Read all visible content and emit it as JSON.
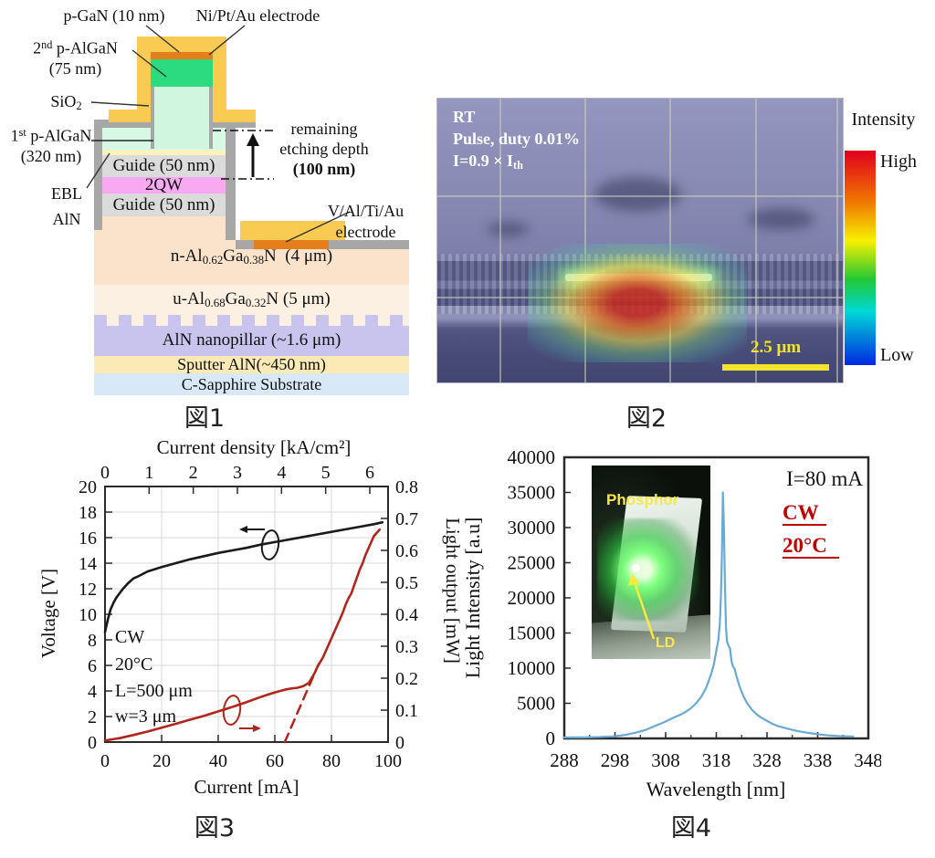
{
  "captions": {
    "fig1": "図1",
    "fig2": "図2",
    "fig3": "図3",
    "fig4": "図4"
  },
  "fig1": {
    "labels": {
      "p_gan": "p-GaN (10 nm)",
      "ni_pt_au": "Ni/Pt/Au electrode",
      "p_algan2_line1": "2<sup>nd</sup> p-AlGaN",
      "p_algan2_line2": "(75 nm)",
      "sio2": "SiO<sub>2</sub>",
      "p_algan1_line1": "1<sup>st</sup> p-AlGaN",
      "p_algan1_line2": "(320 nm)",
      "ebl_line1": "EBL",
      "ebl_line2": "AlN",
      "etch_line1": "remaining",
      "etch_line2": "etching depth",
      "etch_line3": "(100 nm)",
      "v_electrode_line1": "V/Al/Ti/Au",
      "v_electrode_line2": "electrode"
    },
    "layers": {
      "guide_top": "Guide (50 nm)",
      "qw": "2QW",
      "guide_bottom": "Guide (50 nm)",
      "n_algan": "n-Al<sub>0.62</sub>Ga<sub>0.38</sub>N&nbsp; (4 μm)",
      "u_algan": "u-Al<sub>0.68</sub>Ga<sub>0.32</sub>N (5 μm)",
      "nanopillar": "AlN nanopillar (~1.6 μm)",
      "sputter": "Sputter AlN(~450 nm)",
      "substrate": "C-Sapphire Substrate"
    },
    "colors": {
      "electrode_gold": "#FACB52",
      "contact_orange": "#E57F1B",
      "p_algan2_green": "#2CDB80",
      "ridge_green": "#D0F6DF",
      "p_algan1_green": "#D6F8E4",
      "ebl_yellow": "#FAF3C0",
      "guide_gray": "#DBDBDB",
      "qw_pink": "#F8A9F2",
      "frame_gray": "#A7A7A7",
      "n_algan_peach": "#FAE2CB",
      "u_algan_peach": "#FCF0E2",
      "nanopillar_lavender": "#C8C4EE",
      "sputter_yellow": "#FBE9B6",
      "sapphire_blue": "#D8E8F6"
    }
  },
  "fig2": {
    "annotation_line1": "RT",
    "annotation_line2": "Pulse, duty 0.01%",
    "annotation_line3": "I=0.9 × I<sub>th</sub>",
    "scale_bar": "2.5 μm",
    "colorbar": {
      "title": "Intensity",
      "high": "High",
      "low": "Low"
    },
    "colors": {
      "colorbar_stops": [
        "#e0001c",
        "#f07800",
        "#f8f000",
        "#22c832",
        "#00d8d8",
        "#0028e0"
      ],
      "scale_bar_yellow": "#f2e32b",
      "bg_top": "#9496bf",
      "bg_bottom": "#42466f"
    }
  },
  "fig4_inset": {
    "phosphor_label": "Phosphor",
    "ld_label": "LD"
  },
  "chart_data": [
    {
      "id": "fig3-liv",
      "type": "line",
      "xlabel": "Current [mA]",
      "xlabel_top": "Current density [kA/cm²]",
      "ylabel_left": "Voltage [V]",
      "ylabel_right": "Light output [mW]",
      "xlim": [
        0,
        100
      ],
      "xlim_top": [
        0,
        6.42
      ],
      "ylim_left": [
        0,
        20
      ],
      "ylim_right": [
        0,
        0.8
      ],
      "x_ticks": [
        0,
        20,
        40,
        60,
        80,
        100
      ],
      "x_ticks_top": [
        0,
        1,
        2,
        3,
        4,
        5,
        6
      ],
      "y_ticks_left": [
        0,
        2,
        4,
        6,
        8,
        10,
        12,
        14,
        16,
        18,
        20
      ],
      "y_ticks_right": [
        0,
        0.1,
        0.2,
        0.3,
        0.4,
        0.5,
        0.6,
        0.7,
        0.8
      ],
      "grid": true,
      "annotations": [
        "CW",
        "20°C",
        "L=500 μm",
        "w=3 μm"
      ],
      "threshold_mA": 64,
      "series": [
        {
          "name": "Voltage",
          "axis": "left",
          "color": "#1a1a1a",
          "x": [
            0,
            0.5,
            1,
            2,
            3,
            4,
            5,
            6,
            8,
            10,
            12,
            15,
            20,
            25,
            30,
            35,
            40,
            45,
            50,
            55,
            60,
            65,
            70,
            75,
            80,
            85,
            90,
            95,
            98
          ],
          "y": [
            8.6,
            9.1,
            9.6,
            10.4,
            10.9,
            11.3,
            11.6,
            11.9,
            12.4,
            12.8,
            13.0,
            13.35,
            13.7,
            14.0,
            14.3,
            14.55,
            14.8,
            15.0,
            15.2,
            15.45,
            15.65,
            15.85,
            16.05,
            16.25,
            16.45,
            16.65,
            16.85,
            17.05,
            17.2
          ]
        },
        {
          "name": "Light output",
          "axis": "right",
          "color": "#b1251a",
          "x": [
            0,
            5,
            10,
            15,
            20,
            25,
            30,
            35,
            40,
            45,
            50,
            54,
            58,
            61,
            64,
            66,
            68,
            70,
            72,
            73,
            74,
            75,
            76,
            77,
            78,
            80,
            82,
            84,
            85,
            86,
            87,
            88,
            89,
            90,
            91,
            92,
            93,
            94,
            95,
            96,
            97
          ],
          "y": [
            0.005,
            0.012,
            0.022,
            0.033,
            0.045,
            0.057,
            0.07,
            0.082,
            0.096,
            0.11,
            0.125,
            0.138,
            0.15,
            0.158,
            0.165,
            0.168,
            0.17,
            0.175,
            0.185,
            0.2,
            0.215,
            0.235,
            0.25,
            0.265,
            0.285,
            0.325,
            0.365,
            0.405,
            0.43,
            0.45,
            0.465,
            0.49,
            0.515,
            0.54,
            0.56,
            0.585,
            0.605,
            0.625,
            0.645,
            0.655,
            0.665
          ]
        },
        {
          "name": "Threshold extrapolation",
          "axis": "right",
          "style": "dashed",
          "color": "#b1251a",
          "x": [
            63.5,
            75.5
          ],
          "y": [
            0,
            0.245
          ]
        }
      ]
    },
    {
      "id": "fig4-spectrum",
      "type": "line",
      "xlabel": "Wavelength [nm]",
      "ylabel": "Light Intensity [a.u]",
      "xlim": [
        288,
        348
      ],
      "ylim": [
        0,
        40000
      ],
      "x_ticks": [
        288,
        298,
        308,
        318,
        328,
        338,
        348
      ],
      "y_ticks": [
        0,
        5000,
        10000,
        15000,
        20000,
        25000,
        30000,
        35000,
        40000
      ],
      "grid": false,
      "annotations": [
        "I=80 mA",
        "CW",
        "20°C"
      ],
      "peak": {
        "wavelength": 319.3,
        "intensity": 35000
      },
      "series": [
        {
          "name": "EL spectrum",
          "color": "#69aad5",
          "x": [
            288,
            292,
            295,
            298,
            300,
            302,
            304,
            306,
            308,
            310,
            311,
            312,
            313,
            314,
            315,
            316,
            317,
            317.5,
            318,
            318.4,
            318.7,
            318.9,
            319.1,
            319.3,
            319.5,
            319.7,
            319.9,
            320.1,
            320.4,
            320.7,
            321,
            321.3,
            321.6,
            322,
            322.5,
            323,
            323.5,
            324,
            325,
            326,
            327,
            328,
            329,
            330,
            332,
            334,
            336,
            338,
            340,
            342,
            344,
            345
          ],
          "y": [
            150,
            150,
            200,
            300,
            500,
            800,
            1200,
            1800,
            2400,
            3100,
            3400,
            3800,
            4300,
            5000,
            5900,
            7200,
            9200,
            10500,
            12500,
            14000,
            16500,
            20000,
            26000,
            35000,
            30000,
            22000,
            16000,
            13800,
            13200,
            12800,
            11000,
            10200,
            9900,
            8800,
            7600,
            6600,
            5800,
            5100,
            4100,
            3400,
            2900,
            2500,
            2100,
            1800,
            1400,
            1050,
            800,
            600,
            450,
            350,
            300,
            280
          ]
        }
      ]
    }
  ]
}
